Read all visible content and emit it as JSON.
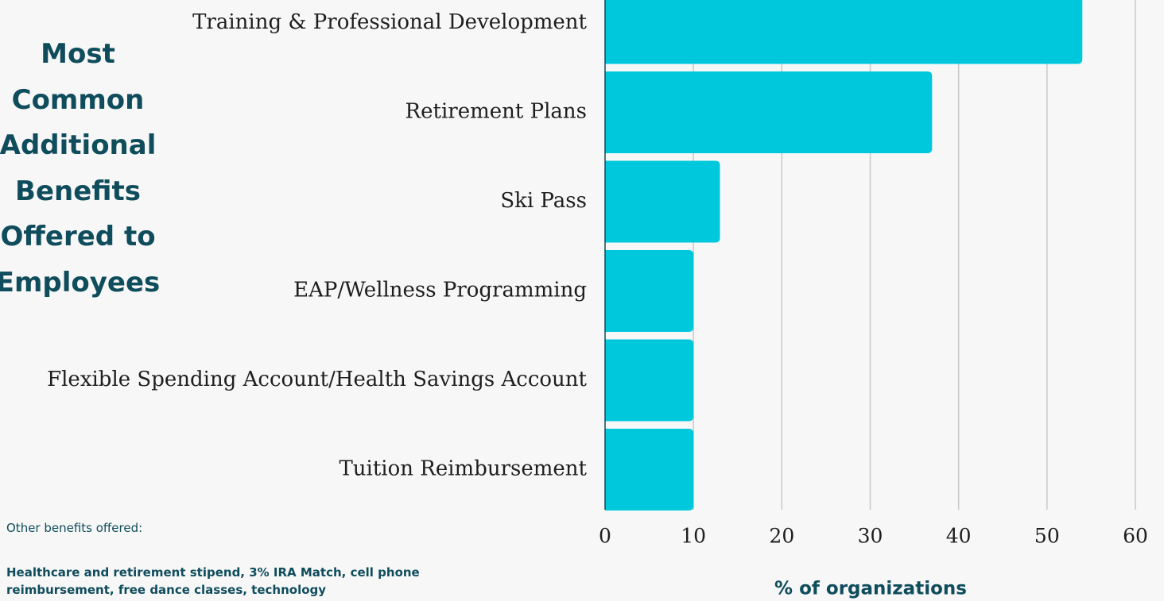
{
  "chart_data": {
    "type": "barh",
    "title": "Most Common Additional Benefits Offered to Employees",
    "categories": [
      "Training & Professional Development",
      "Retirement Plans",
      "Ski Pass",
      "EAP/Wellness Programming",
      "Flexible Spending Account/Health Savings Account",
      "Tuition Reimbursement"
    ],
    "values": [
      54,
      37,
      13,
      10,
      10,
      10
    ],
    "color": "#00c8dc",
    "xlim": [
      0,
      60
    ],
    "xticks": [
      0,
      10,
      20,
      30,
      40,
      50,
      60
    ],
    "grid": true,
    "xlabel": "% of organizations",
    "note_title": "Other benefits offered:",
    "note": "Healthcare and retirement stipend, 3% IRA Match, cell phone reimbursement, free dance classes, technology"
  }
}
